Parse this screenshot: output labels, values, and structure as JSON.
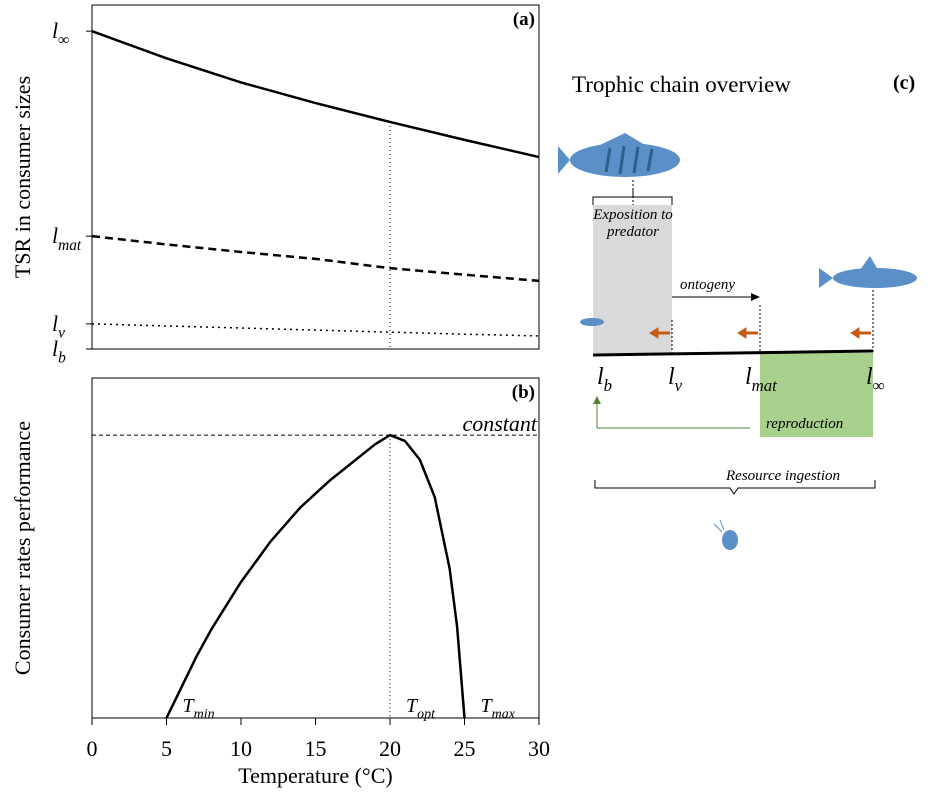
{
  "chart_data": [
    {
      "type": "line",
      "panel_label": "(a)",
      "ylabel": "TSR in consumer sizes",
      "x": [
        0,
        5,
        10,
        15,
        20,
        25,
        30
      ],
      "xlim": [
        0,
        30
      ],
      "ylim": [
        0,
        100
      ],
      "yticks": [
        {
          "value": 0,
          "label": "lb"
        },
        {
          "value": 7.3,
          "label": "lv"
        },
        {
          "value": 32.8,
          "label": "lmat"
        },
        {
          "value": 92.4,
          "label": "l∞"
        }
      ],
      "series": [
        {
          "color": "#000000",
          "dash": "solid",
          "values": [
            92.4,
            84.5,
            77.5,
            71.5,
            66,
            60.8,
            55.8
          ]
        },
        {
          "color": "#000000",
          "dash": "dashed",
          "values": [
            32.8,
            30.4,
            28.2,
            26.2,
            23.5,
            21.6,
            19.8
          ]
        },
        {
          "color": "#000000",
          "dash": "dotted",
          "values": [
            7.3,
            6.7,
            6.1,
            5.5,
            4.9,
            4.3,
            3.8
          ]
        }
      ],
      "vline": 20
    },
    {
      "type": "line",
      "panel_label": "(b)",
      "xlabel": "Temperature (°C)",
      "ylabel": "Consumer rates performance",
      "x": [
        5,
        6,
        7,
        8,
        9,
        10,
        11,
        12,
        13,
        14,
        15,
        16,
        17,
        18,
        19,
        20,
        21,
        22,
        23,
        24,
        24.5,
        25
      ],
      "xlim": [
        0,
        30
      ],
      "ylim": [
        0,
        100
      ],
      "xticks": [
        0,
        5,
        10,
        15,
        20,
        25,
        30
      ],
      "series": [
        {
          "color": "#000000",
          "dash": "solid",
          "values": [
            0,
            9,
            18,
            26,
            33,
            40,
            46,
            52,
            57,
            62,
            66,
            70,
            73.5,
            77,
            80.5,
            83.2,
            81.5,
            76,
            65,
            44,
            27,
            0
          ]
        }
      ],
      "hline": {
        "value": 83.2,
        "label": "constant"
      },
      "vline": 20,
      "annotations": [
        {
          "x": 5,
          "label": "Tmin"
        },
        {
          "x": 20,
          "label": "Topt"
        },
        {
          "x": 25,
          "label": "Tmax"
        }
      ]
    }
  ],
  "diagram": {
    "title": "Trophic chain overview",
    "panel_label": "(c)",
    "predation": "Exposition to predator",
    "ontogeny": "ontogeny",
    "sizes": [
      "lb",
      "lv",
      "lmat",
      "l∞"
    ],
    "reproduction": "reproduction",
    "resource": "Resource ingestion"
  }
}
